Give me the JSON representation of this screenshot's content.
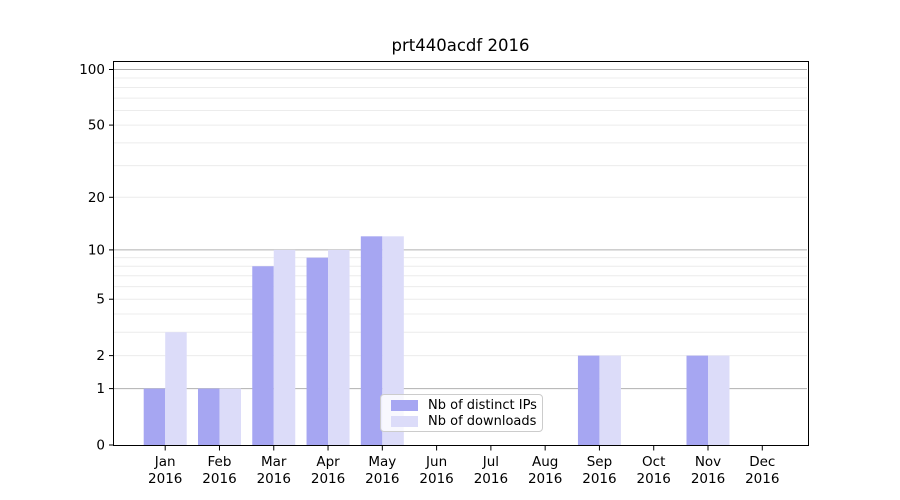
{
  "title": "prt440acdf 2016",
  "chart_data": {
    "type": "bar",
    "title": "prt440acdf 2016",
    "categories": [
      "Jan",
      "Feb",
      "Mar",
      "Apr",
      "May",
      "Jun",
      "Jul",
      "Aug",
      "Sep",
      "Oct",
      "Nov",
      "Dec"
    ],
    "year_label": "2016",
    "series": [
      {
        "name": "Nb of distinct IPs",
        "color": "#a6a6f2",
        "values": [
          1,
          1,
          8,
          9,
          12,
          0,
          0,
          0,
          2,
          0,
          2,
          0
        ]
      },
      {
        "name": "Nb of downloads",
        "color": "#dcdcf9",
        "values": [
          3,
          1,
          10,
          10,
          12,
          0,
          0,
          0,
          2,
          0,
          2,
          0
        ]
      }
    ],
    "yscale": "log10(1+x)",
    "ylim": [
      0,
      112
    ],
    "yticks": [
      0,
      1,
      2,
      5,
      10,
      20,
      50,
      100
    ],
    "major_gridlines": [
      1,
      10,
      100
    ],
    "minor_gridlines": [
      2,
      3,
      4,
      5,
      6,
      7,
      8,
      9,
      20,
      30,
      40,
      50,
      60,
      70,
      80,
      90
    ],
    "grid": "horizontal only",
    "legend_position": "lower center"
  },
  "colors": {
    "background": "#ffffff",
    "major_gridline": "#b0b0b0",
    "minor_gridline": "#ececec",
    "spine": "#000000",
    "legend_border": "#cccccc"
  }
}
